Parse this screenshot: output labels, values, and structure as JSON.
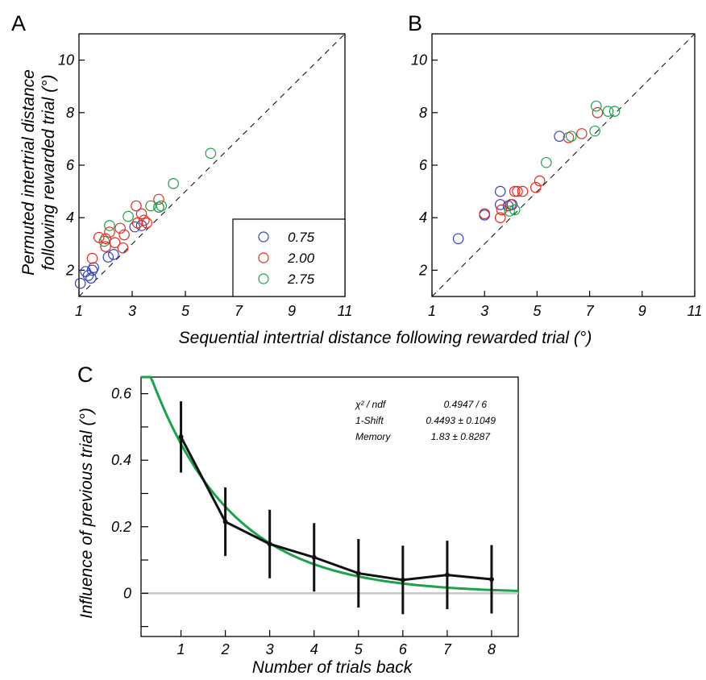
{
  "labels": {
    "panel_a": "A",
    "panel_b": "B",
    "panel_c": "C",
    "ylabel_ab_line1": "Permuted intertrial distance",
    "ylabel_ab_line2": "following rewarded trial (°)",
    "xlabel_ab": "Sequential intertrial distance following rewarded trial (°)",
    "ylabel_c": "Influence of previous trial (°)",
    "xlabel_c": "Number of trials back"
  },
  "legend": [
    {
      "label": "0.75",
      "color": "#3344bb"
    },
    {
      "label": "2.00",
      "color": "#e8281e"
    },
    {
      "label": "2.75",
      "color": "#1aa34a"
    }
  ],
  "stats": {
    "row1_label": "χ² / ndf",
    "row1_value": "0.4947 / 6",
    "row2_label": "1-Shift",
    "row2_value": "0.4493 ± 0.1049",
    "row3_label": "Memory",
    "row3_value": "1.83 ± 0.8287"
  },
  "colors": {
    "fit": "#1aa34a",
    "data_line": "#111111",
    "zero_line": "#c8c8c8"
  },
  "chart_data": [
    {
      "type": "scatter",
      "panel": "A",
      "xlim": [
        1,
        11
      ],
      "ylim": [
        1,
        11
      ],
      "xticks": [
        1,
        3,
        5,
        7,
        9,
        11
      ],
      "yticks": [
        2,
        4,
        6,
        8,
        10
      ],
      "diagonal": true,
      "legend_position": "bottom-right",
      "series": [
        {
          "name": "0.75",
          "color": "#3344bb",
          "points": [
            [
              1.05,
              1.5
            ],
            [
              1.25,
              1.95
            ],
            [
              1.5,
              2.0
            ],
            [
              1.45,
              1.7
            ],
            [
              1.35,
              1.8
            ],
            [
              1.55,
              2.1
            ],
            [
              2.1,
              2.5
            ],
            [
              2.3,
              2.6
            ],
            [
              3.1,
              3.65
            ],
            [
              3.35,
              3.7
            ]
          ]
        },
        {
          "name": "2.00",
          "color": "#e8281e",
          "points": [
            [
              1.5,
              2.45
            ],
            [
              1.75,
              3.25
            ],
            [
              2.0,
              3.2
            ],
            [
              2.0,
              2.9
            ],
            [
              2.15,
              3.45
            ],
            [
              2.35,
              3.05
            ],
            [
              2.55,
              3.6
            ],
            [
              2.7,
              3.35
            ],
            [
              2.65,
              2.85
            ],
            [
              3.15,
              4.45
            ],
            [
              3.2,
              3.8
            ],
            [
              3.35,
              4.15
            ],
            [
              3.45,
              3.9
            ],
            [
              3.55,
              3.8
            ],
            [
              4.0,
              4.7
            ],
            [
              4.0,
              4.4
            ]
          ]
        },
        {
          "name": "2.75",
          "color": "#1aa34a",
          "points": [
            [
              1.95,
              3.1
            ],
            [
              2.15,
              3.7
            ],
            [
              2.85,
              4.05
            ],
            [
              3.7,
              4.45
            ],
            [
              4.0,
              4.4
            ],
            [
              4.1,
              4.45
            ],
            [
              4.55,
              5.3
            ],
            [
              5.95,
              6.45
            ]
          ]
        }
      ]
    },
    {
      "type": "scatter",
      "panel": "B",
      "xlim": [
        1,
        11
      ],
      "ylim": [
        1,
        11
      ],
      "xticks": [
        1,
        3,
        5,
        7,
        9,
        11
      ],
      "yticks": [
        2,
        4,
        6,
        8,
        10
      ],
      "diagonal": true,
      "series": [
        {
          "name": "0.75",
          "color": "#3344bb",
          "points": [
            [
              2.0,
              3.2
            ],
            [
              3.0,
              4.1
            ],
            [
              3.6,
              4.5
            ],
            [
              3.6,
              5.0
            ],
            [
              3.9,
              4.45
            ],
            [
              4.05,
              4.5
            ],
            [
              5.85,
              7.1
            ]
          ]
        },
        {
          "name": "2.00",
          "color": "#e8281e",
          "points": [
            [
              3.0,
              4.15
            ],
            [
              3.6,
              4.0
            ],
            [
              3.65,
              4.3
            ],
            [
              4.0,
              4.5
            ],
            [
              4.15,
              5.0
            ],
            [
              4.25,
              5.0
            ],
            [
              4.45,
              5.0
            ],
            [
              4.95,
              5.15
            ],
            [
              5.1,
              5.4
            ],
            [
              6.2,
              7.05
            ],
            [
              6.7,
              7.2
            ],
            [
              7.3,
              8.0
            ]
          ]
        },
        {
          "name": "2.75",
          "color": "#1aa34a",
          "points": [
            [
              3.95,
              4.25
            ],
            [
              4.15,
              4.3
            ],
            [
              5.35,
              6.1
            ],
            [
              6.3,
              7.1
            ],
            [
              7.2,
              7.3
            ],
            [
              7.25,
              8.25
            ],
            [
              7.7,
              8.05
            ],
            [
              7.95,
              8.05
            ]
          ]
        }
      ]
    },
    {
      "type": "line",
      "panel": "C",
      "xlim": [
        0.1,
        8.6
      ],
      "ylim": [
        -0.13,
        0.65
      ],
      "xticks": [
        1,
        2,
        3,
        4,
        5,
        6,
        7,
        8
      ],
      "yticks": [
        0,
        0.2,
        0.4,
        0.6
      ],
      "ytick_labels": [
        "0",
        "0.2",
        "0.4",
        "0.6"
      ],
      "y_minor_ticks": [
        -0.1,
        0.1,
        0.3,
        0.5
      ],
      "x": [
        1,
        2,
        3,
        4,
        5,
        6,
        7,
        8
      ],
      "y": [
        0.47,
        0.215,
        0.148,
        0.108,
        0.06,
        0.04,
        0.055,
        0.042
      ],
      "error": [
        0.107,
        0.103,
        0.103,
        0.103,
        0.103,
        0.103,
        0.103,
        0.103
      ],
      "fit": {
        "amplitude": 0.4493,
        "memory": 1.83,
        "equation": "amplitude * exp(-(x-1)/memory)"
      },
      "zero_line": true
    }
  ]
}
